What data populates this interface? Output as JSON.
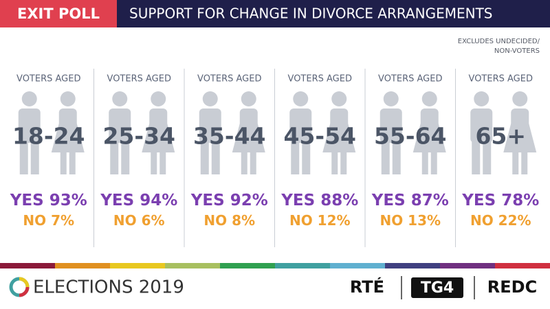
{
  "chart_data": {
    "type": "infographic",
    "badge": "EXIT POLL",
    "title": "SUPPORT FOR CHANGE IN DIVORCE ARRANGEMENTS",
    "note": [
      "EXCLUDES UNDECIDED/",
      "NON-VOTERS"
    ],
    "group_label": "VOTERS AGED",
    "categories": [
      "18-24",
      "25-34",
      "35-44",
      "45-54",
      "55-64",
      "65+"
    ],
    "series": [
      {
        "name": "YES",
        "color": "#7b3fb0",
        "values": [
          93,
          94,
          92,
          88,
          87,
          78
        ],
        "value_labels": [
          "93%",
          "94%",
          "92%",
          "88%",
          "87%",
          "78%"
        ]
      },
      {
        "name": "NO",
        "color": "#f0a030",
        "values": [
          7,
          6,
          8,
          12,
          13,
          22
        ],
        "value_labels": [
          "7%",
          "6%",
          "8%",
          "12%",
          "13%",
          "22%"
        ]
      }
    ],
    "footer": {
      "brand": "ELECTIONS 2019",
      "partners": [
        "RTÉ",
        "TG4",
        "REDC"
      ]
    }
  }
}
